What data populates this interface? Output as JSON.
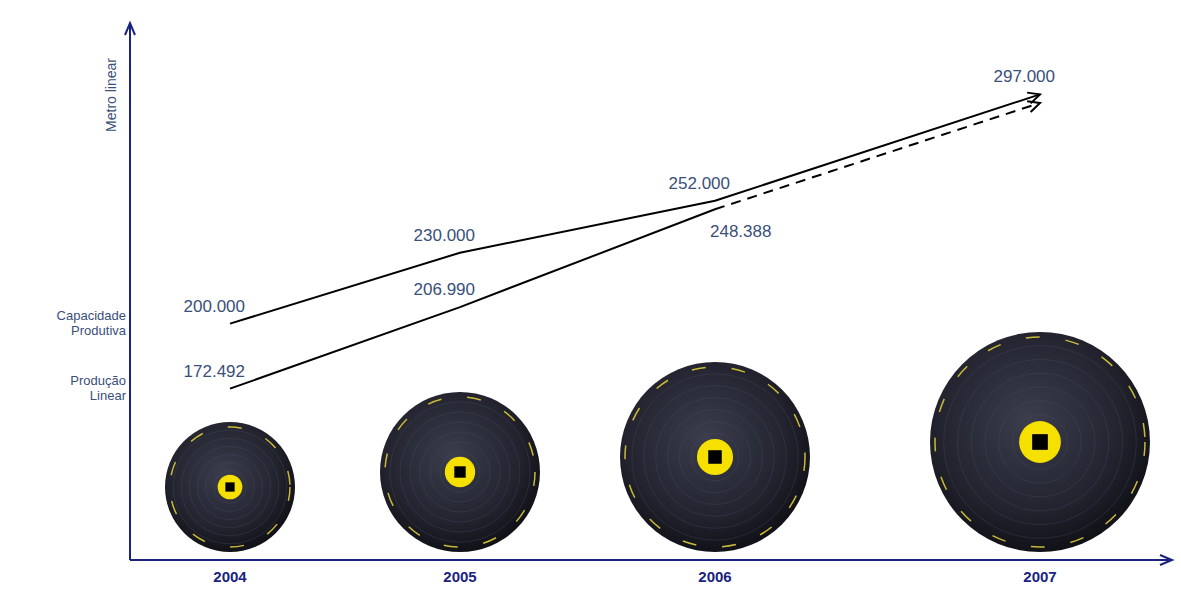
{
  "chart_data": {
    "type": "line",
    "y_label": "Metro linear",
    "categories": [
      "2004",
      "2005",
      "2006",
      "2007"
    ],
    "series": [
      {
        "name": "Capacidade Produtiva",
        "color": "#000000",
        "line_style": "solid",
        "values": [
          200000,
          230000,
          252000,
          297000
        ],
        "value_labels": [
          "200.000",
          "230.000",
          "252.000",
          "297.000"
        ]
      },
      {
        "name": "Produção Linear",
        "color": "#000000",
        "line_style": "solid",
        "values": [
          172492,
          206990,
          248388,
          null
        ],
        "value_labels": [
          "172.492",
          "206.990",
          "248.388",
          null
        ]
      }
    ],
    "ylim": [
      100000,
      320000
    ],
    "tick_labels": "x",
    "data_labels": true
  }
}
